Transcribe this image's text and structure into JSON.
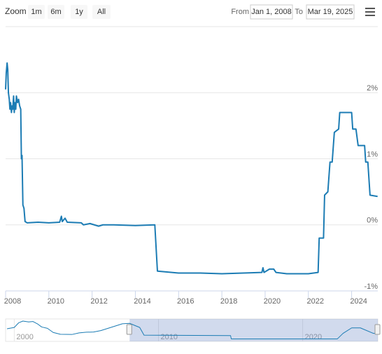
{
  "toolbar": {
    "zoom_label": "Zoom",
    "buttons": [
      "1m",
      "6m",
      "1y",
      "All"
    ],
    "from_label": "From",
    "from": "Jan 1, 2008",
    "to_label": "To",
    "to": "Mar 19, 2025"
  },
  "chart_data": {
    "type": "line",
    "color": "#1c7cb4",
    "grid": true,
    "xlim": [
      2008,
      2025.21
    ],
    "xticks": [
      2008,
      2010,
      2012,
      2014,
      2016,
      2018,
      2020,
      2022,
      2024
    ],
    "ylim": [
      -1,
      3
    ],
    "yticks": [
      {
        "value": -1,
        "label": "-1%"
      },
      {
        "value": 0,
        "label": "0%"
      },
      {
        "value": 1,
        "label": "1%"
      },
      {
        "value": 2,
        "label": "2%"
      }
    ],
    "x": [
      2008.0,
      2008.03,
      2008.07,
      2008.1,
      2008.13,
      2008.17,
      2008.2,
      2008.23,
      2008.27,
      2008.3,
      2008.33,
      2008.37,
      2008.4,
      2008.43,
      2008.47,
      2008.5,
      2008.55,
      2008.6,
      2008.65,
      2008.7,
      2008.73,
      2008.76,
      2008.8,
      2008.85,
      2008.9,
      2009.0,
      2009.5,
      2010.0,
      2010.5,
      2010.58,
      2010.62,
      2010.75,
      2010.85,
      2011.5,
      2011.6,
      2011.9,
      2012.3,
      2012.5,
      2013.0,
      2014.0,
      2014.9,
      2015.02,
      2016.0,
      2017.0,
      2018.0,
      2019.0,
      2019.85,
      2019.9,
      2019.95,
      2020.2,
      2020.4,
      2020.5,
      2021.0,
      2022.0,
      2022.45,
      2022.5,
      2022.7,
      2022.75,
      2022.9,
      2023.0,
      2023.1,
      2023.2,
      2023.4,
      2023.45,
      2024.0,
      2024.05,
      2024.2,
      2024.3,
      2024.6,
      2024.65,
      2024.75,
      2024.85,
      2025.2
    ],
    "values": [
      2.05,
      2.3,
      2.45,
      2.35,
      2.0,
      1.9,
      1.75,
      1.85,
      1.7,
      1.8,
      1.75,
      1.95,
      1.7,
      1.85,
      1.75,
      1.95,
      1.85,
      1.9,
      1.8,
      1.75,
      1.0,
      1.05,
      0.3,
      0.25,
      0.05,
      0.03,
      0.04,
      0.03,
      0.04,
      0.13,
      0.05,
      0.1,
      0.04,
      0.03,
      0.0,
      0.02,
      -0.02,
      0.0,
      0.0,
      -0.01,
      0.0,
      -0.7,
      -0.73,
      -0.73,
      -0.74,
      -0.73,
      -0.72,
      -0.65,
      -0.72,
      -0.67,
      -0.67,
      -0.72,
      -0.74,
      -0.74,
      -0.72,
      -0.2,
      -0.2,
      0.45,
      0.5,
      0.95,
      0.95,
      1.4,
      1.45,
      1.7,
      1.7,
      1.45,
      1.45,
      1.2,
      1.2,
      0.95,
      0.95,
      0.45,
      0.43
    ]
  },
  "navigator": {
    "xlim": [
      1999.4,
      2025.21
    ],
    "ylim": [
      -0.8,
      3.2
    ],
    "xticks": [
      2000,
      2010,
      2020
    ],
    "x": [
      1999.5,
      2000.0,
      2000.3,
      2000.6,
      2001.0,
      2001.3,
      2001.6,
      2001.9,
      2002.3,
      2002.7,
      2003.2,
      2004.0,
      2004.5,
      2005.0,
      2005.5,
      2006.0,
      2006.5,
      2007.0,
      2007.5,
      2008.0,
      2008.7,
      2009.0,
      2015.0,
      2015.05,
      2022.4,
      2022.8,
      2023.4,
      2024.0,
      2024.9,
      2025.2
    ],
    "values": [
      1.5,
      1.8,
      2.8,
      3.2,
      3.0,
      3.1,
      2.6,
      1.9,
      1.6,
      0.7,
      0.3,
      0.25,
      0.6,
      0.75,
      0.8,
      1.1,
      1.6,
      2.1,
      2.6,
      2.7,
      1.8,
      0.1,
      0.0,
      -0.72,
      -0.73,
      0.5,
      1.7,
      1.7,
      0.5,
      0.43
    ]
  }
}
